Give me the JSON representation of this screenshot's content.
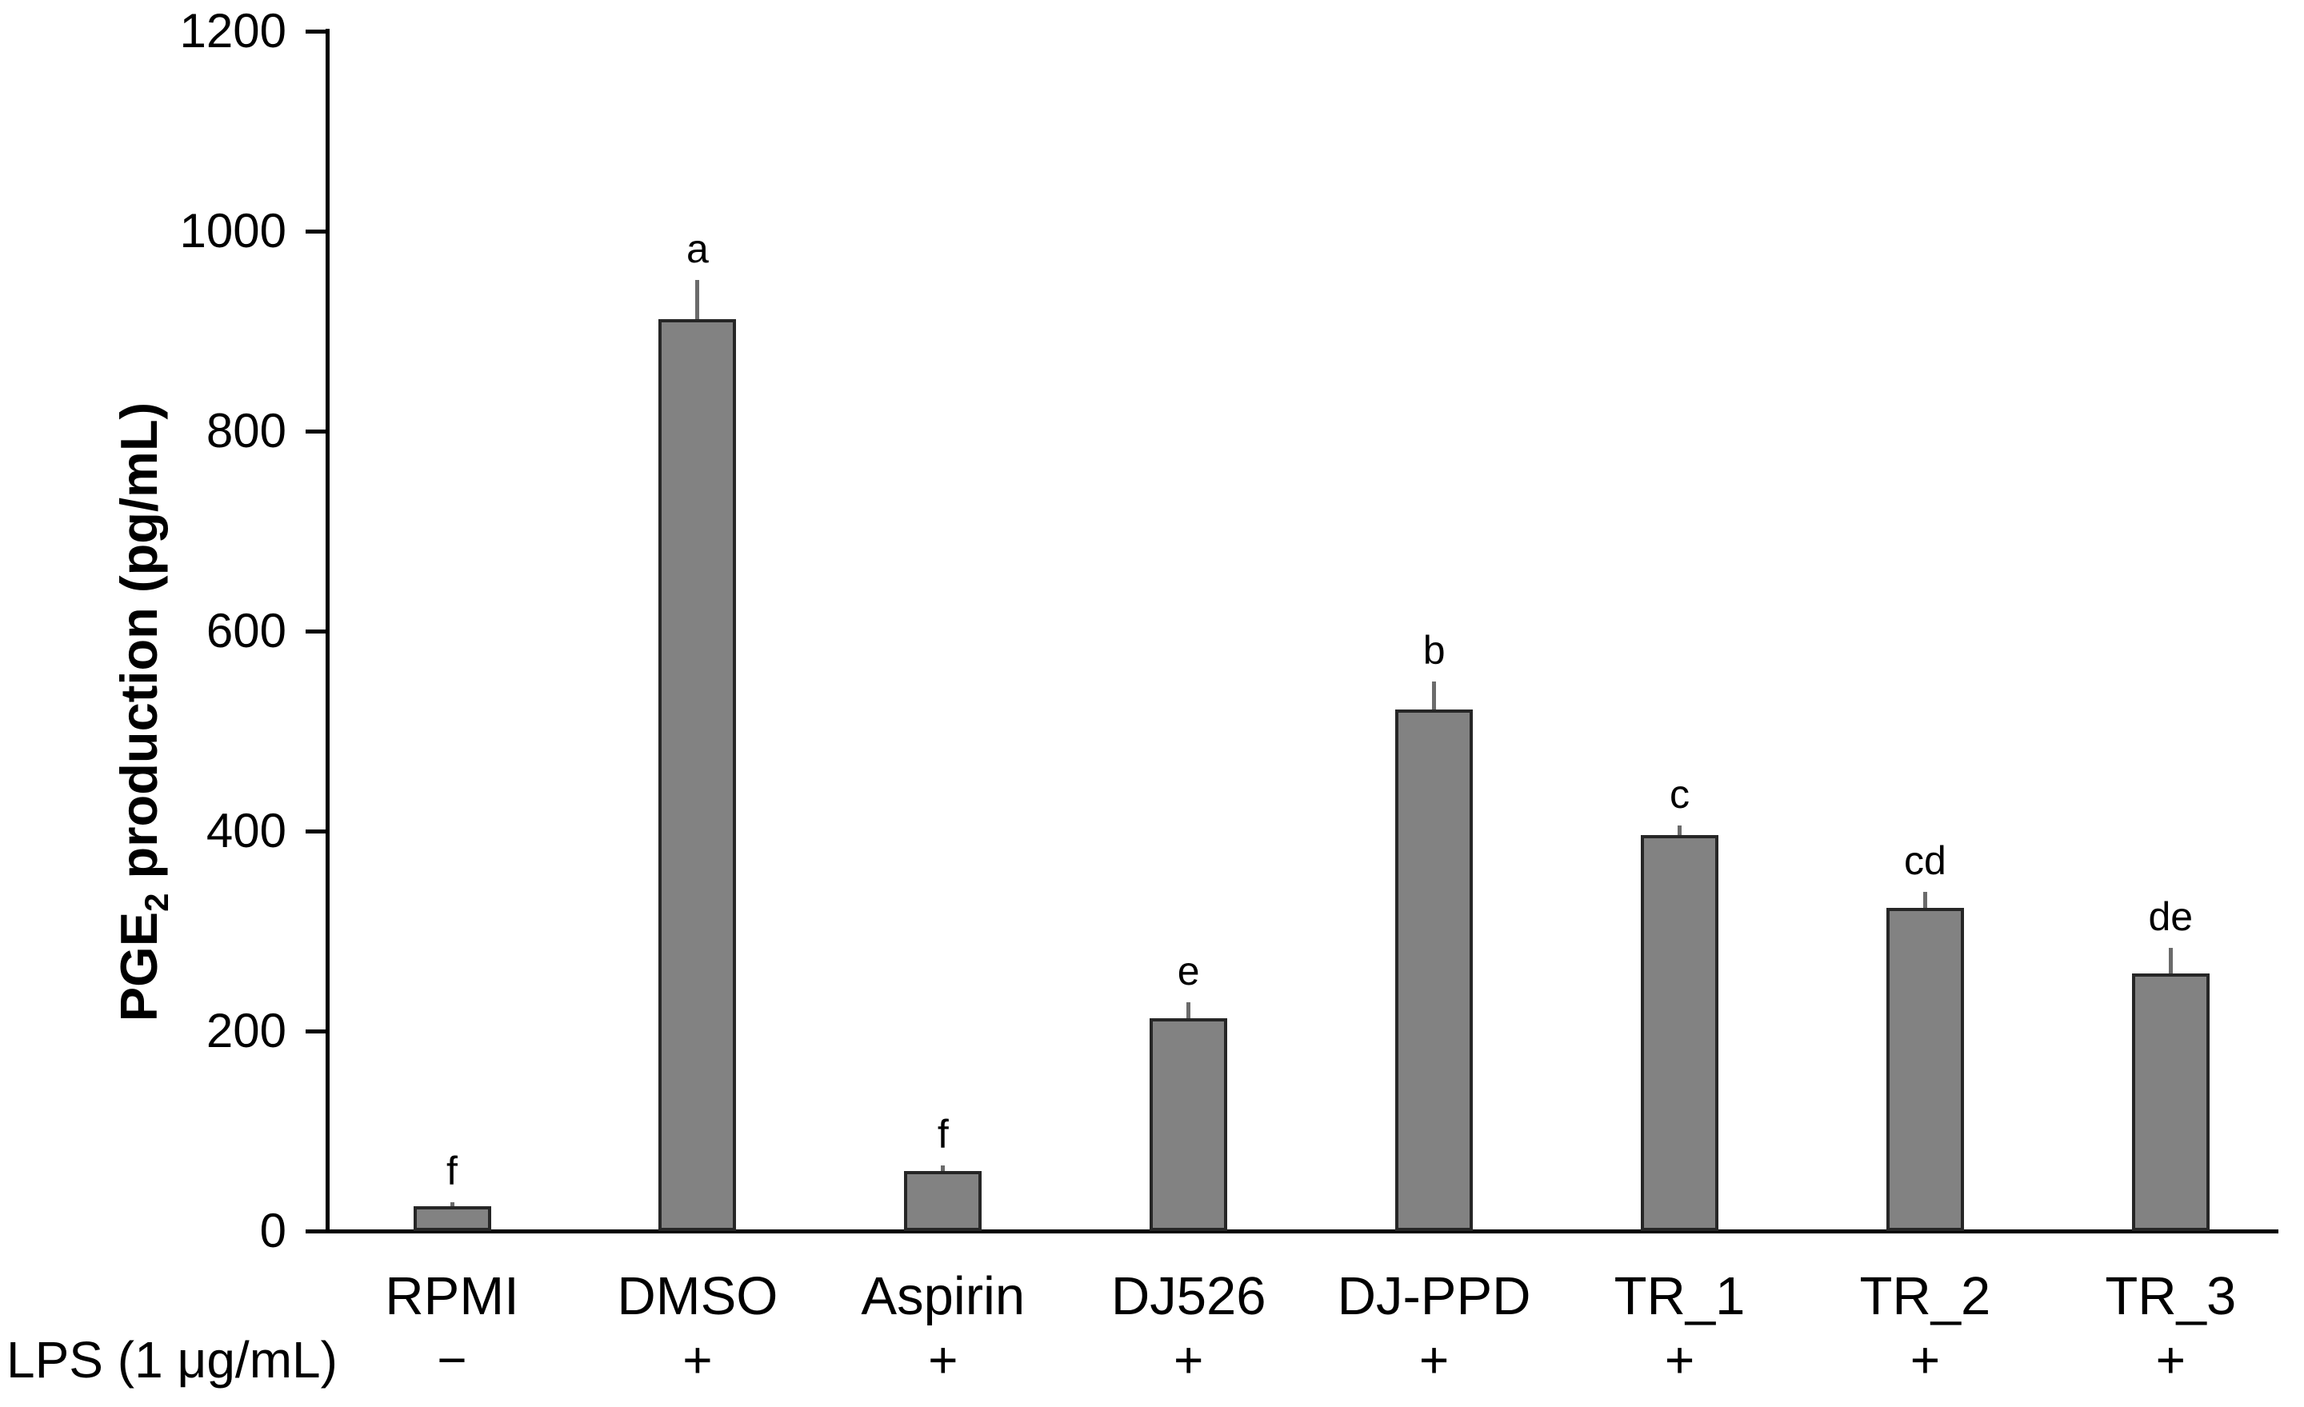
{
  "figure": {
    "y_axis_title_main": "PGE",
    "y_axis_title_sub": "2",
    "y_axis_title_rest": " production (pg/mL)",
    "lps_row_label": "LPS (1 μg/mL)"
  },
  "chart_data": {
    "type": "bar",
    "title": "",
    "xlabel": "",
    "ylabel": "PGE2 production (pg/mL)",
    "ylim": [
      0,
      1200
    ],
    "yticks": [
      0,
      200,
      400,
      600,
      800,
      1000,
      1200
    ],
    "grid": false,
    "legend": "none",
    "categories": [
      "RPMI",
      "DMSO",
      "Aspirin",
      "DJ526",
      "DJ-PPD",
      "TR_1",
      "TR_2",
      "TR_3"
    ],
    "values": [
      25,
      912,
      60,
      213,
      522,
      396,
      323,
      258
    ],
    "errors_upper": [
      4,
      39,
      6,
      16,
      28,
      10,
      16,
      25
    ],
    "significance_letters": [
      "f",
      "a",
      "f",
      "e",
      "b",
      "c",
      "cd",
      "de"
    ],
    "lps_signs": [
      "−",
      "+",
      "+",
      "+",
      "+",
      "+",
      "+",
      "+"
    ],
    "bar_color": "#828282",
    "bar_border_color": "#262626",
    "error_bar_color": "#6b6b6b",
    "axis_color": "#000000",
    "text_color": "#000000"
  }
}
